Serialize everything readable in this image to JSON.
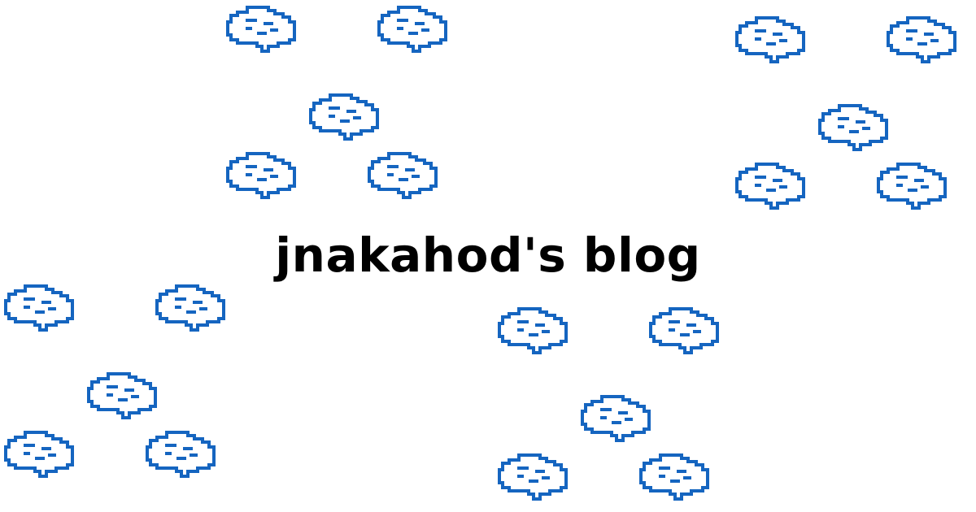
{
  "site": {
    "title": "jnakahod's blog"
  },
  "decoration": {
    "icon": "pixel-cloud-icon",
    "color": "#1565c0",
    "count": 24
  }
}
